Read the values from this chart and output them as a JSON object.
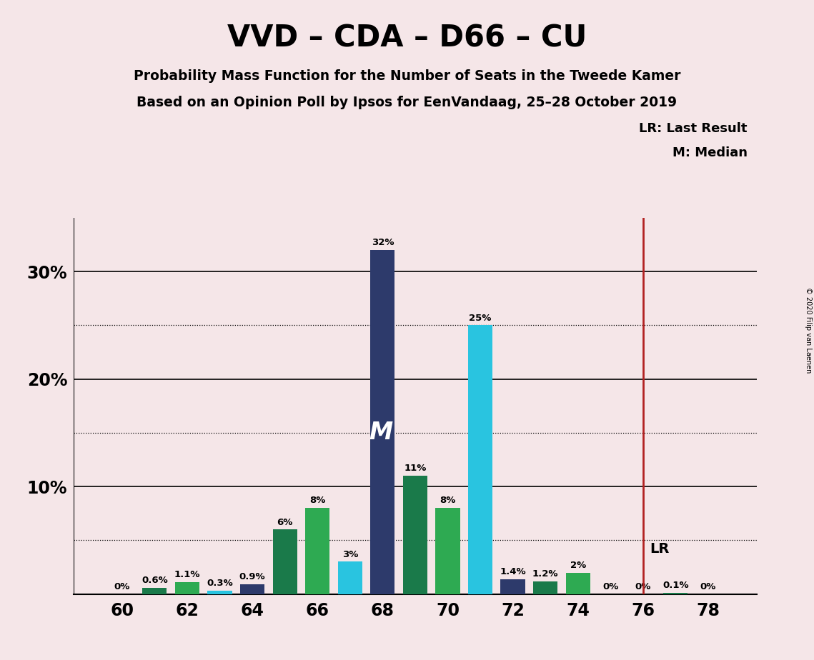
{
  "title": "VVD – CDA – D66 – CU",
  "subtitle1": "Probability Mass Function for the Number of Seats in the Tweede Kamer",
  "subtitle2": "Based on an Opinion Poll by Ipsos for EenVandaag, 25–28 October 2019",
  "copyright": "© 2020 Filip van Laenen",
  "background_color": "#f5e6e8",
  "seats": [
    60,
    61,
    62,
    63,
    64,
    65,
    66,
    67,
    68,
    69,
    70,
    71,
    72,
    73,
    74,
    75,
    76,
    77,
    78
  ],
  "values": [
    0.0,
    0.6,
    1.1,
    0.3,
    0.9,
    6.0,
    8.0,
    3.0,
    32.0,
    11.0,
    8.0,
    25.0,
    1.4,
    1.2,
    2.0,
    0.0,
    0.0,
    0.1,
    0.0
  ],
  "labels": [
    "0%",
    "0.6%",
    "1.1%",
    "0.3%",
    "0.9%",
    "6%",
    "8%",
    "3%",
    "32%",
    "11%",
    "8%",
    "25%",
    "1.4%",
    "1.2%",
    "2%",
    "0%",
    "0%",
    "0.1%",
    "0%"
  ],
  "colors_per_seat": {
    "60": "#2d3a6b",
    "61": "#1a7a4a",
    "62": "#2eaa52",
    "63": "#29c4e0",
    "64": "#2d3a6b",
    "65": "#1a7a4a",
    "66": "#2eaa52",
    "67": "#29c4e0",
    "68": "#2d3a6b",
    "69": "#1a7a4a",
    "70": "#2eaa52",
    "71": "#29c4e0",
    "72": "#2d3a6b",
    "73": "#1a7a4a",
    "74": "#2eaa52",
    "75": "#2d3a6b",
    "76": "#2d3a6b",
    "77": "#1a7a4a",
    "78": "#2eaa52"
  },
  "median_seat": 68,
  "lr_seat": 76,
  "lr_color": "#b22222",
  "median_label_color": "#ffffff",
  "xlim": [
    58.5,
    79.5
  ],
  "ylim": [
    0,
    35
  ],
  "shown_yticks": [
    10,
    20,
    30
  ],
  "shown_ytick_labels": [
    "10%",
    "20%",
    "30%"
  ],
  "dotted_lines": [
    5,
    15,
    25
  ],
  "solid_lines": [
    10,
    20,
    30
  ],
  "xticks": [
    60,
    62,
    64,
    66,
    68,
    70,
    72,
    74,
    76,
    78
  ],
  "bar_width": 0.75
}
